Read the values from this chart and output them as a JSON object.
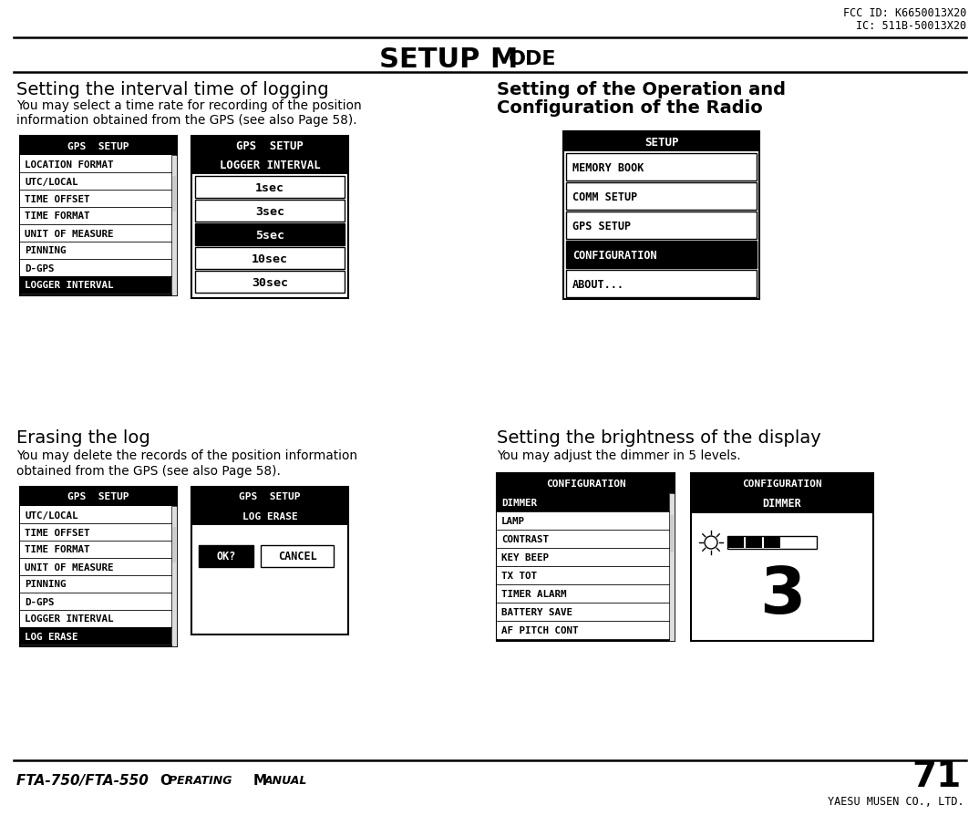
{
  "page_title_bold": "SETUP M",
  "page_title_normal": "ODE",
  "fcc_line1": "FCC ID: K6650013X20",
  "fcc_line2": "IC: 511B-50013X20",
  "page_number": "71",
  "footer_left": "FTA-750/FTA-550 O",
  "footer_left2": "PERATING",
  "footer_left3": " M",
  "footer_left4": "ANUAL",
  "footer_right": "YAESU MUSEN CO., LTD.",
  "section1_title": "Setting the interval time of logging",
  "section1_body1": "You may select a time rate for recording of the position",
  "section1_body2": "information obtained from the GPS (see also Page 58).",
  "section2_title1": "Setting of the Operation and",
  "section2_title2": "Configuration of the Radio",
  "section3_title": "Erasing the log",
  "section3_body1": "You may delete the records of the position information",
  "section3_body2": "obtained from the GPS (see also Page 58).",
  "section4_title": "Setting the brightness of the display",
  "section4_body": "You may adjust the dimmer in 5 levels.",
  "gps_menu1_title": "GPS  SETUP",
  "gps_menu1_items": [
    "LOCATION FORMAT",
    "UTC/LOCAL",
    "TIME OFFSET",
    "TIME FORMAT",
    "UNIT OF MEASURE",
    "PINNING",
    "D-GPS",
    "LOGGER INTERVAL"
  ],
  "gps_menu1_selected": "LOGGER INTERVAL",
  "gps_menu2_title": "GPS  SETUP",
  "gps_menu2_subtitle": "LOGGER INTERVAL",
  "gps_menu2_items": [
    "1sec",
    "3sec",
    "5sec",
    "10sec",
    "30sec"
  ],
  "gps_menu2_selected": "5sec",
  "setup_menu_title": "SETUP",
  "setup_menu_items": [
    "MEMORY BOOK",
    "COMM SETUP",
    "GPS SETUP",
    "CONFIGURATION",
    "ABOUT..."
  ],
  "setup_menu_selected": "CONFIGURATION",
  "gps_menu3_title": "GPS  SETUP",
  "gps_menu3_items": [
    "UTC/LOCAL",
    "TIME OFFSET",
    "TIME FORMAT",
    "UNIT OF MEASURE",
    "PINNING",
    "D-GPS",
    "LOGGER INTERVAL",
    "LOG ERASE"
  ],
  "gps_menu3_selected": "LOG ERASE",
  "gps_menu4_title": "GPS  SETUP",
  "gps_menu4_subtitle": "LOG ERASE",
  "config_menu1_title": "CONFIGURATION",
  "config_menu1_items": [
    "DIMMER",
    "LAMP",
    "CONTRAST",
    "KEY BEEP",
    "TX TOT",
    "TIMER ALARM",
    "BATTERY SAVE",
    "AF PITCH CONT"
  ],
  "config_menu1_selected": "DIMMER",
  "config_menu2_title": "CONFIGURATION",
  "config_menu2_subtitle": "DIMMER",
  "config_menu2_value": "3",
  "bg_color": "#ffffff",
  "black": "#000000",
  "white": "#ffffff",
  "light_gray": "#cccccc",
  "mid_gray": "#888888",
  "dark_gray": "#444444"
}
